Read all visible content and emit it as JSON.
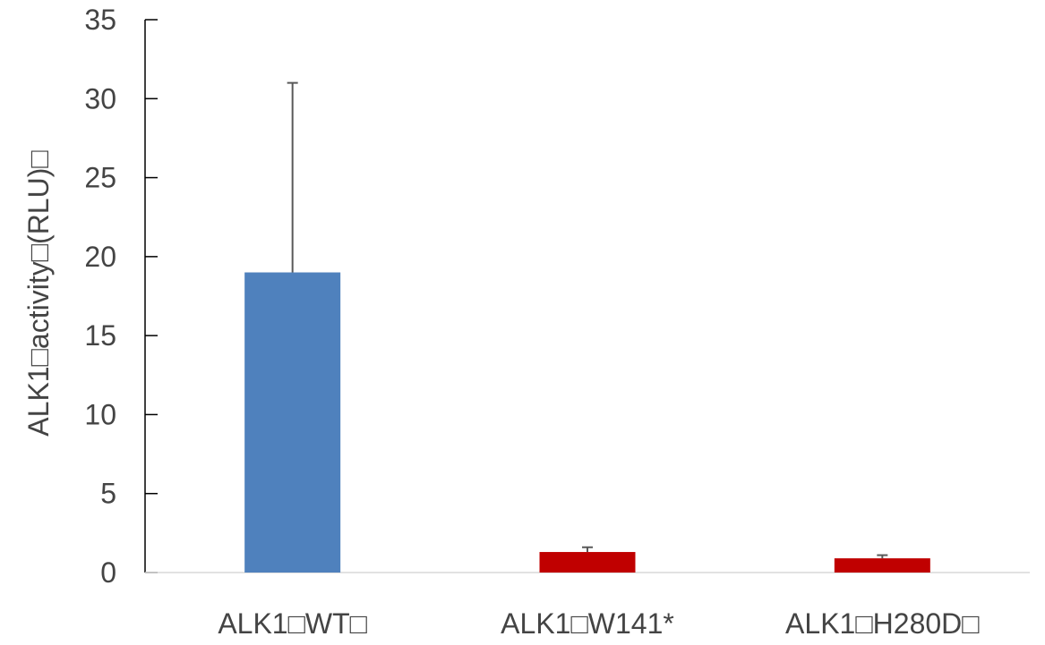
{
  "chart_data": {
    "type": "bar",
    "title": "",
    "xlabel": "",
    "ylabel": "ALK1\u0000activity\u0000(RLU)\u0000",
    "ylim": [
      0,
      35
    ],
    "yticks": [
      0,
      5,
      10,
      15,
      20,
      25,
      30,
      35
    ],
    "grid": false,
    "legend": "none",
    "categories": [
      "ALK1\u0000WT\u0000",
      "ALK1\u0000W141*",
      "ALK1\u0000H280D\u0000"
    ],
    "values": [
      19.0,
      1.3,
      0.9
    ],
    "errors": [
      12.0,
      0.3,
      0.2
    ],
    "colors": [
      "#4f81bd",
      "#c00000",
      "#c00000"
    ],
    "axis_color": "#000000",
    "error_bar_color": "#595959"
  }
}
